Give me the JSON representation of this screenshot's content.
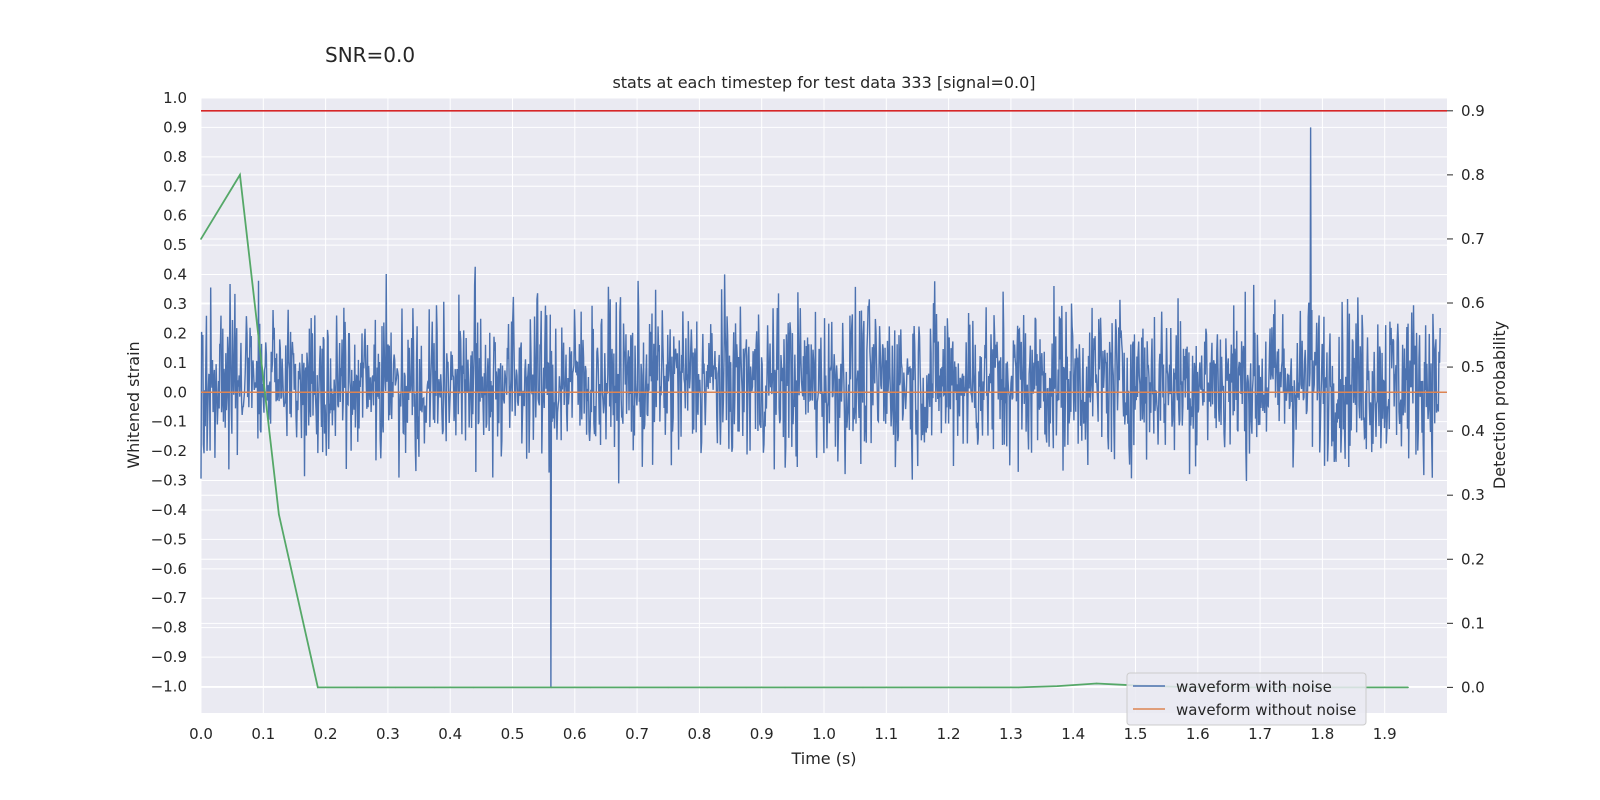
{
  "chart_data": {
    "type": "line",
    "title": "stats at each timestep for test data 333 [signal=0.0]",
    "suptitle": "SNR=0.0",
    "xlabel": "Time (s)",
    "ylabel": "Whitened strain",
    "y2label": "Detection probability",
    "xlim": [
      0.0,
      2.0
    ],
    "ylim": [
      -1.09,
      1.0
    ],
    "y2lim": [
      -0.04,
      0.92
    ],
    "xticks": [
      "0.0",
      "0.1",
      "0.2",
      "0.3",
      "0.4",
      "0.5",
      "0.6",
      "0.7",
      "0.8",
      "0.9",
      "1.0",
      "1.1",
      "1.2",
      "1.3",
      "1.4",
      "1.5",
      "1.6",
      "1.7",
      "1.8",
      "1.9"
    ],
    "yticks": [
      "1.0",
      "0.9",
      "0.8",
      "0.7",
      "0.6",
      "0.5",
      "0.4",
      "0.3",
      "0.2",
      "0.1",
      "0.0",
      "−0.1",
      "−0.2",
      "−0.3",
      "−0.4",
      "−0.5",
      "−0.6",
      "−0.7",
      "−0.8",
      "−0.9",
      "−1.0"
    ],
    "y2ticks": [
      "0.9",
      "0.8",
      "0.7",
      "0.6",
      "0.5",
      "0.4",
      "0.3",
      "0.2",
      "0.1",
      "0.0"
    ],
    "grid": true,
    "legend_position": "bottom-right",
    "threshold": {
      "value": 0.9,
      "axis": "right",
      "color": "#d62728"
    },
    "series": [
      {
        "name": "waveform with noise",
        "color": "#4c72b0",
        "axis": "left",
        "sample_count": 2048,
        "peak_max": 0.9,
        "peak_min": -1.0,
        "typical_amplitude": 0.42
      },
      {
        "name": "waveform without noise",
        "color": "#dd8452",
        "axis": "left",
        "constant": 0.0
      },
      {
        "name": "detection probability",
        "color": "#55a868",
        "axis": "right",
        "x": [
          0.0,
          0.0625,
          0.125,
          0.1875,
          0.25,
          0.3125,
          0.375,
          0.4375,
          0.5,
          0.5625,
          0.625,
          0.6875,
          0.75,
          0.8125,
          0.875,
          0.9375,
          1.0,
          1.0625,
          1.125,
          1.1875,
          1.25,
          1.3125,
          1.375,
          1.4375,
          1.5,
          1.5625,
          1.625,
          1.6875,
          1.75,
          1.8125,
          1.875,
          1.9375
        ],
        "y": [
          0.7,
          0.8,
          0.27,
          0.0,
          0.0,
          0.0,
          0.0,
          0.0,
          0.0,
          0.0,
          0.0,
          0.0,
          0.0,
          0.0,
          0.0,
          0.0,
          0.0,
          0.0,
          0.0,
          0.0,
          0.0,
          0.0,
          0.002,
          0.006,
          0.003,
          0.001,
          0.0,
          0.0,
          0.0,
          0.0,
          0.0,
          0.0
        ]
      }
    ]
  }
}
